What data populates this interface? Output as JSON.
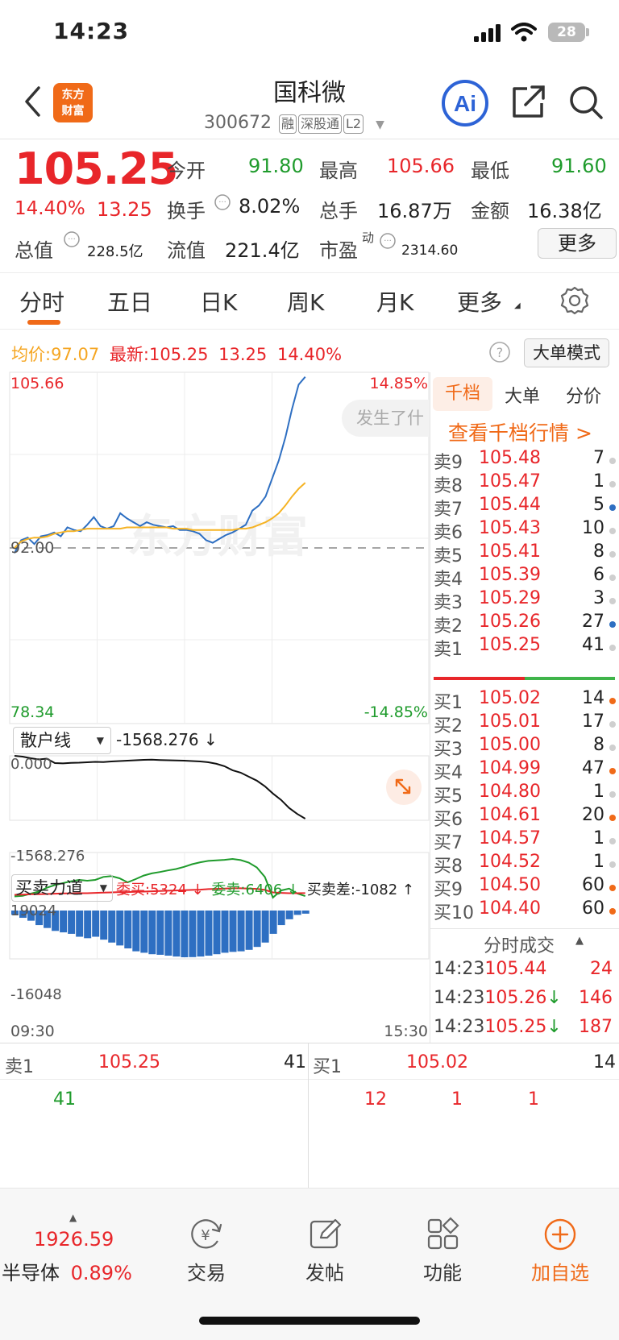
{
  "status_bar": {
    "time": "14:23",
    "battery": "28"
  },
  "header": {
    "logo_text": [
      "东方",
      "财富"
    ],
    "name": "国科微",
    "code": "300672",
    "tags": [
      "融",
      "深股通",
      "L2"
    ]
  },
  "quote": {
    "price": "105.25",
    "change_pct": "14.40%",
    "change": "13.25",
    "open_label": "今开",
    "open": "91.80",
    "high_label": "最高",
    "high": "105.66",
    "low_label": "最低",
    "low": "91.60",
    "turnover_label": "换手",
    "turnover": "8.02%",
    "volume_label": "总手",
    "volume": "16.87万",
    "amount_label": "金额",
    "amount": "16.38亿",
    "mktcap_label": "总值",
    "mktcap": "228.5亿",
    "float_label": "流值",
    "float": "221.4亿",
    "pe_label": "市盈",
    "pe_sup": "动",
    "pe": "2314.60",
    "more": "更多"
  },
  "tabs": [
    "分时",
    "五日",
    "日K",
    "周K",
    "月K",
    "更多"
  ],
  "chart_info": {
    "avg_label": "均价:",
    "avg": "97.07",
    "latest_label": "最新:",
    "latest": "105.25",
    "chg": "13.25",
    "pct": "14.40%",
    "big_order_mode": "大单模式"
  },
  "chart_labels": {
    "top_left": "105.66",
    "top_right": "14.85%",
    "mid": "92.00",
    "bottom_left": "78.34",
    "bottom_right": "-14.85%",
    "popup": "发生了什",
    "watermark": "东方财富",
    "retail_select": "散户线",
    "retail_value": "-1568.276 ↓",
    "retail_top": "0.000",
    "retail_bottom": "-1568.276",
    "force_select": "买卖力道",
    "force_buy": "委买:5324 ↓",
    "force_sell": "委卖:6406 ↓",
    "force_diff": "买卖差:-1082 ↑",
    "force_top": "19024",
    "force_bottom": "-16048",
    "time_start": "09:30",
    "time_end": "15:30"
  },
  "chart_data": {
    "type": "line",
    "x_range": [
      "09:30",
      "15:30"
    ],
    "ylim": [
      78.34,
      105.66
    ],
    "reference_price": 92.0,
    "series": [
      {
        "values": [
          91.6,
          92.6,
          92.8,
          92.3,
          92.9,
          93.0,
          93.2,
          92.9,
          93.6,
          93.4,
          93.3,
          93.8,
          94.4,
          93.7,
          93.5,
          93.7,
          94.7,
          94.3,
          94.0,
          93.7,
          94.0,
          93.8,
          93.7,
          93.6,
          93.7,
          93.4,
          93.4,
          93.3,
          93.1,
          92.6,
          92.4,
          92.7,
          93.0,
          93.2,
          93.5,
          93.8,
          94.9,
          95.3,
          96.0,
          97.4,
          98.8,
          100.6,
          102.8,
          104.7,
          105.3
        ]
      },
      {
        "values": [
          92.0,
          92.5,
          92.7,
          92.8,
          92.8,
          92.9,
          93.1,
          93.2,
          93.3,
          93.3,
          93.4,
          93.5,
          93.5,
          93.5,
          93.5,
          93.5,
          93.5,
          93.6,
          93.6,
          93.6,
          93.6,
          93.6,
          93.6,
          93.6,
          93.5,
          93.5,
          93.5,
          93.4,
          93.4,
          93.4,
          93.4,
          93.4,
          93.4,
          93.4,
          93.5,
          93.5,
          93.6,
          93.8,
          94.0,
          94.3,
          94.7,
          95.3,
          96.0,
          96.6,
          97.07
        ]
      }
    ],
    "retail_line": [
      0,
      -20,
      -60,
      -90,
      -70,
      -180,
      -190,
      -175,
      -170,
      -160,
      -150,
      -155,
      -140,
      -130,
      -120,
      -110,
      -100,
      -95,
      -105,
      -110,
      -115,
      -120,
      -130,
      -140,
      -160,
      -200,
      -260,
      -360,
      -420,
      -520,
      -620,
      -760,
      -940,
      -1100,
      -1300,
      -1450,
      -1568.276
    ],
    "force_buy": [
      5200,
      5400,
      6200,
      7000,
      8400,
      9400,
      10100,
      10800,
      11300,
      11000,
      11300,
      12400,
      12700,
      11900,
      10400,
      11600,
      12900,
      13700,
      14200,
      14800,
      15300,
      16100,
      17100,
      17800,
      18300,
      18500,
      18700,
      19024,
      18600,
      17700,
      15900,
      12400,
      4800,
      7400,
      8100,
      6300,
      5324
    ],
    "force_sell": [
      5800,
      5900,
      6000,
      6000,
      6100,
      6200,
      6300,
      6300,
      6400,
      6400,
      6500,
      6600,
      6700,
      6800,
      6800,
      6900,
      7000,
      7100,
      7200,
      7300,
      7400,
      7500,
      7600,
      7700,
      7900,
      8000,
      8100,
      8200,
      8200,
      8100,
      8000,
      7600,
      6700,
      6500,
      6400,
      6400,
      6406
    ],
    "force_diff": [
      -1500,
      -2500,
      -3500,
      -5000,
      -6000,
      -7000,
      -7500,
      -8000,
      -9000,
      -9500,
      -9000,
      -10000,
      -11000,
      -12000,
      -13000,
      -14000,
      -14500,
      -15000,
      -15200,
      -15500,
      -15800,
      -16048,
      -16000,
      -15800,
      -15500,
      -15000,
      -14500,
      -14200,
      -14000,
      -13500,
      -12500,
      -11000,
      -8000,
      -5000,
      -3000,
      -1500,
      -1082
    ]
  },
  "orderbook": {
    "tabs": [
      "千档",
      "大单",
      "分价"
    ],
    "view_link": "查看千档行情 >",
    "sell": [
      {
        "label": "卖9",
        "price": "105.48",
        "vol": "7",
        "dot": "#cfcfcf"
      },
      {
        "label": "卖8",
        "price": "105.47",
        "vol": "1",
        "dot": "#cfcfcf"
      },
      {
        "label": "卖7",
        "price": "105.44",
        "vol": "5",
        "dot": "#2e6fc2"
      },
      {
        "label": "卖6",
        "price": "105.43",
        "vol": "10",
        "dot": "#cfcfcf"
      },
      {
        "label": "卖5",
        "price": "105.41",
        "vol": "8",
        "dot": "#cfcfcf"
      },
      {
        "label": "卖4",
        "price": "105.39",
        "vol": "6",
        "dot": "#cfcfcf"
      },
      {
        "label": "卖3",
        "price": "105.29",
        "vol": "3",
        "dot": "#cfcfcf"
      },
      {
        "label": "卖2",
        "price": "105.26",
        "vol": "27",
        "dot": "#2e6fc2"
      },
      {
        "label": "卖1",
        "price": "105.25",
        "vol": "41",
        "dot": "#cfcfcf"
      }
    ],
    "buy": [
      {
        "label": "买1",
        "price": "105.02",
        "vol": "14",
        "dot": "#f06a18"
      },
      {
        "label": "买2",
        "price": "105.01",
        "vol": "17",
        "dot": "#cfcfcf"
      },
      {
        "label": "买3",
        "price": "105.00",
        "vol": "8",
        "dot": "#cfcfcf"
      },
      {
        "label": "买4",
        "price": "104.99",
        "vol": "47",
        "dot": "#f06a18"
      },
      {
        "label": "买5",
        "price": "104.80",
        "vol": "1",
        "dot": "#cfcfcf"
      },
      {
        "label": "买6",
        "price": "104.61",
        "vol": "20",
        "dot": "#f06a18"
      },
      {
        "label": "买7",
        "price": "104.57",
        "vol": "1",
        "dot": "#cfcfcf"
      },
      {
        "label": "买8",
        "price": "104.52",
        "vol": "1",
        "dot": "#cfcfcf"
      },
      {
        "label": "买9",
        "price": "104.50",
        "vol": "60",
        "dot": "#f06a18"
      },
      {
        "label": "买10",
        "price": "104.40",
        "vol": "60",
        "dot": "#f06a18"
      }
    ],
    "ticks_header": "分时成交",
    "ticks": [
      {
        "time": "14:23",
        "price": "105.44",
        "arrow": "",
        "vol": "24"
      },
      {
        "time": "14:23",
        "price": "105.26",
        "arrow": "↓",
        "vol": "146"
      },
      {
        "time": "14:23",
        "price": "105.25",
        "arrow": "↓",
        "vol": "187"
      }
    ]
  },
  "queue": {
    "sell_label": "卖1",
    "sell_price": "105.25",
    "sell_vol": "41",
    "sell_items": [
      "41"
    ],
    "buy_label": "买1",
    "buy_price": "105.02",
    "buy_vol": "14",
    "buy_items": [
      "12",
      "1",
      "1"
    ]
  },
  "bottom_bar": {
    "index_value": "1926.59",
    "index_name": "半导体",
    "index_pct": "0.89%",
    "items": [
      "交易",
      "发帖",
      "功能",
      "加自选"
    ]
  },
  "colors": {
    "up": "#e8262a",
    "down": "#1f9b2c",
    "accent": "#f06a18",
    "price_line": "#2e6fc2",
    "avg_line": "#f5b324"
  }
}
